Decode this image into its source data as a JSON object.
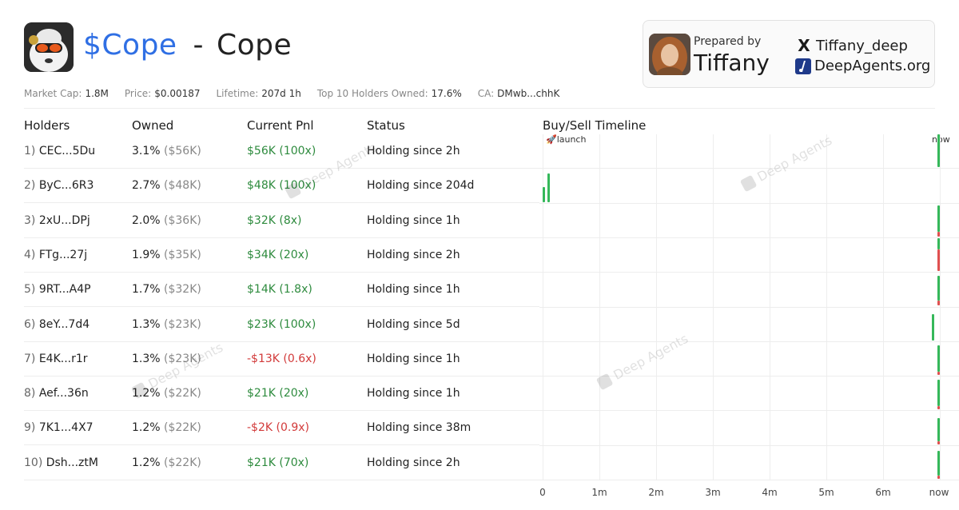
{
  "header": {
    "ticker": "$Cope",
    "separator": "-",
    "name": "Cope"
  },
  "card": {
    "prepared_label": "Prepared by",
    "prepared_name": "Tiffany",
    "x_handle": "Tiffany_deep",
    "site": "DeepAgents.org",
    "x_icon": "X",
    "site_icon": "deepagents-icon"
  },
  "stats": {
    "market_cap_label": "Market Cap:",
    "market_cap": "1.8M",
    "price_label": "Price:",
    "price": "$0.00187",
    "lifetime_label": "Lifetime:",
    "lifetime": "207d 1h",
    "top10_label": "Top 10 Holders Owned:",
    "top10": "17.6%",
    "ca_label": "CA:",
    "ca": "DMwb...chhK"
  },
  "columns": {
    "holders": "Holders",
    "owned": "Owned",
    "pnl": "Current Pnl",
    "status": "Status",
    "timeline": "Buy/Sell Timeline"
  },
  "rows": [
    {
      "rank": "1)",
      "holder": "CEC...5Du",
      "owned": "3.1%",
      "owned_usd": "($56K)",
      "pnl": "$56K (100x)",
      "pnl_sign": "pos",
      "status": "Holding since 2h"
    },
    {
      "rank": "2)",
      "holder": "ByC...6R3",
      "owned": "2.7%",
      "owned_usd": "($48K)",
      "pnl": "$48K (100x)",
      "pnl_sign": "pos",
      "status": "Holding since 204d"
    },
    {
      "rank": "3)",
      "holder": "2xU...DPj",
      "owned": "2.0%",
      "owned_usd": "($36K)",
      "pnl": "$32K (8x)",
      "pnl_sign": "pos",
      "status": "Holding since 1h"
    },
    {
      "rank": "4)",
      "holder": "FTg...27j",
      "owned": "1.9%",
      "owned_usd": "($35K)",
      "pnl": "$34K (20x)",
      "pnl_sign": "pos",
      "status": "Holding since 2h"
    },
    {
      "rank": "5)",
      "holder": "9RT...A4P",
      "owned": "1.7%",
      "owned_usd": "($32K)",
      "pnl": "$14K (1.8x)",
      "pnl_sign": "pos",
      "status": "Holding since 1h"
    },
    {
      "rank": "6)",
      "holder": "8eY...7d4",
      "owned": "1.3%",
      "owned_usd": "($23K)",
      "pnl": "$23K (100x)",
      "pnl_sign": "pos",
      "status": "Holding since 5d"
    },
    {
      "rank": "7)",
      "holder": "E4K...r1r",
      "owned": "1.3%",
      "owned_usd": "($23K)",
      "pnl": "-$13K (0.6x)",
      "pnl_sign": "neg",
      "status": "Holding since 1h"
    },
    {
      "rank": "8)",
      "holder": "Aef...36n",
      "owned": "1.2%",
      "owned_usd": "($22K)",
      "pnl": "$21K (20x)",
      "pnl_sign": "pos",
      "status": "Holding since 1h"
    },
    {
      "rank": "9)",
      "holder": "7K1...4X7",
      "owned": "1.2%",
      "owned_usd": "($22K)",
      "pnl": "-$2K (0.9x)",
      "pnl_sign": "neg",
      "status": "Holding since 38m"
    },
    {
      "rank": "10)",
      "holder": "Dsh...ztM",
      "owned": "1.2%",
      "owned_usd": "($22K)",
      "pnl": "$21K (70x)",
      "pnl_sign": "pos",
      "status": "Holding since 2h"
    }
  ],
  "timeline": {
    "launch_label": "🚀launch",
    "now_label": "now",
    "ticks": [
      "0",
      "1m",
      "2m",
      "3m",
      "4m",
      "5m",
      "6m",
      "now"
    ],
    "tick_pos": [
      0,
      1,
      2,
      3,
      4,
      5,
      6,
      7
    ],
    "max": 7,
    "events": [
      {
        "row": 0,
        "t": 7.0,
        "buy": 1.0,
        "sell": 0
      },
      {
        "row": 1,
        "t": 0.0,
        "buy": 0.45,
        "sell": 0
      },
      {
        "row": 1,
        "t": 0.08,
        "buy": 0.85,
        "sell": 0
      },
      {
        "row": 2,
        "t": 7.0,
        "buy": 0.8,
        "sell": 0.15
      },
      {
        "row": 3,
        "t": 7.0,
        "buy": 0.35,
        "sell": 0.65
      },
      {
        "row": 4,
        "t": 7.0,
        "buy": 0.75,
        "sell": 0.15
      },
      {
        "row": 5,
        "t": 6.86,
        "buy": 0.8,
        "sell": 0
      },
      {
        "row": 6,
        "t": 7.0,
        "buy": 0.8,
        "sell": 0.1
      },
      {
        "row": 7,
        "t": 7.0,
        "buy": 0.8,
        "sell": 0.1
      },
      {
        "row": 8,
        "t": 7.0,
        "buy": 0.7,
        "sell": 0.1
      },
      {
        "row": 9,
        "t": 7.0,
        "buy": 0.75,
        "sell": 0.1
      }
    ]
  },
  "watermark": "Deep Agents",
  "colors": {
    "ticker": "#2f6fe4",
    "positive": "#2e8b3e",
    "negative": "#d23a3a",
    "buy": "#35b85a",
    "sell": "#e05050"
  }
}
